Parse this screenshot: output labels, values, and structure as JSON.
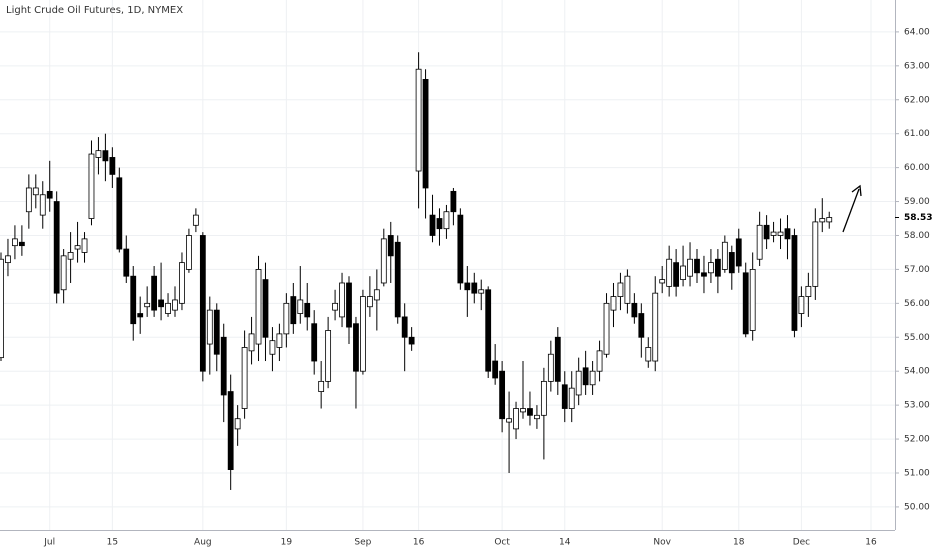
{
  "chart_data": {
    "type": "candlestick",
    "title": "Light Crude Oil Futures, 1D, NYMEX",
    "categories": [
      null,
      null,
      null,
      null,
      null,
      null,
      null,
      "Jul",
      null,
      null,
      null,
      null,
      null,
      null,
      null,
      null,
      "15",
      null,
      null,
      null,
      null,
      null,
      null,
      null,
      null,
      null,
      null,
      null,
      null,
      "Aug",
      null,
      null,
      null,
      null,
      null,
      null,
      null,
      null,
      null,
      null,
      null,
      "19",
      null,
      null,
      null,
      null,
      null,
      null,
      null,
      null,
      null,
      null,
      "Sep",
      null,
      null,
      null,
      null,
      null,
      null,
      null,
      "16",
      null,
      null,
      null,
      null,
      null,
      null,
      null,
      null,
      null,
      null,
      null,
      "Oct",
      null,
      null,
      null,
      null,
      null,
      null,
      null,
      null,
      "14",
      null,
      null,
      null,
      null,
      null,
      null,
      null,
      null,
      null,
      null,
      null,
      null,
      null,
      "Nov",
      null,
      null,
      null,
      null,
      null,
      null,
      null,
      null,
      null,
      null,
      "18",
      null,
      null,
      null,
      null,
      null,
      null,
      null,
      null,
      "Dec",
      null,
      null,
      null,
      null,
      null,
      null,
      null,
      null,
      null,
      "16"
    ],
    "open": [
      54.4,
      57.2,
      57.7,
      57.8,
      58.7,
      59.2,
      58.6,
      59.3,
      59.0,
      56.4,
      57.3,
      57.6,
      57.5,
      58.5,
      60.3,
      60.5,
      60.3,
      59.7,
      57.6,
      56.8,
      55.7,
      55.9,
      56.8,
      56.1,
      55.7,
      55.8,
      56.0,
      57.0,
      58.3,
      58.0,
      54.8,
      55.8,
      55.0,
      53.4,
      52.3,
      52.9,
      54.6,
      54.8,
      56.7,
      54.5,
      54.7,
      55.1,
      56.2,
      55.7,
      56.0,
      55.4,
      53.4,
      53.7,
      55.8,
      55.6,
      56.6,
      55.4,
      54.0,
      55.9,
      56.1,
      56.6,
      58.0,
      57.8,
      55.6,
      55.0,
      59.9,
      62.6,
      58.6,
      58.5,
      58.2,
      59.3,
      58.6,
      56.6,
      56.6,
      56.3,
      56.4,
      54.3,
      54.0,
      52.5,
      52.3,
      52.8,
      52.9,
      52.6,
      52.7,
      53.7,
      55.0,
      53.6,
      52.9,
      53.3,
      54.1,
      53.6,
      54.0,
      54.5,
      55.8,
      56.2,
      56.0,
      56.0,
      55.7,
      54.3,
      54.3,
      56.6,
      56.5,
      57.2,
      56.7,
      56.8,
      57.3,
      56.9,
      56.9,
      57.3,
      57.0,
      57.5,
      57.9,
      56.9,
      55.2,
      57.3,
      58.3,
      58.0,
      58.0,
      58.2,
      58.0,
      55.7,
      56.2,
      56.5,
      58.4,
      58.4,
      null,
      null,
      null,
      null,
      null,
      null
    ],
    "high": [
      57.5,
      57.9,
      58.3,
      58.3,
      59.8,
      59.8,
      59.6,
      60.2,
      59.3,
      57.6,
      58.1,
      58.4,
      58.1,
      60.8,
      60.9,
      61.0,
      60.6,
      60.0,
      58.0,
      57.1,
      56.2,
      56.5,
      57.1,
      57.2,
      56.3,
      56.5,
      57.5,
      58.2,
      58.8,
      58.1,
      56.2,
      56.0,
      55.4,
      53.9,
      53.0,
      55.2,
      55.6,
      57.4,
      57.2,
      55.3,
      55.4,
      56.3,
      56.6,
      57.1,
      56.6,
      55.8,
      54.3,
      55.6,
      56.4,
      56.9,
      56.8,
      55.6,
      56.4,
      56.8,
      57.0,
      58.2,
      58.4,
      58.0,
      56.0,
      55.3,
      63.4,
      62.9,
      59.2,
      58.8,
      58.9,
      59.4,
      58.8,
      57.1,
      56.9,
      56.7,
      56.5,
      54.8,
      54.3,
      53.4,
      53.1,
      54.3,
      53.4,
      53.0,
      54.1,
      54.9,
      55.3,
      54.0,
      54.0,
      54.4,
      54.6,
      54.3,
      54.9,
      56.3,
      56.6,
      56.9,
      57.0,
      56.3,
      56.0,
      55.0,
      56.8,
      57.1,
      57.7,
      57.6,
      57.7,
      57.8,
      57.6,
      57.4,
      57.6,
      57.6,
      58.0,
      57.7,
      58.2,
      57.2,
      57.5,
      58.7,
      58.6,
      58.4,
      58.5,
      58.6,
      58.2,
      56.5,
      56.9,
      58.8,
      59.1,
      58.7,
      null,
      null,
      null,
      null,
      null,
      null
    ],
    "low": [
      54.3,
      56.8,
      57.3,
      57.4,
      58.2,
      58.8,
      58.2,
      58.7,
      56.0,
      56.0,
      56.6,
      57.2,
      57.2,
      58.3,
      59.8,
      59.6,
      59.4,
      57.5,
      56.6,
      54.9,
      55.1,
      55.6,
      55.6,
      55.5,
      55.6,
      55.6,
      55.8,
      56.9,
      58.1,
      53.7,
      53.9,
      54.0,
      52.5,
      50.5,
      51.8,
      52.6,
      54.2,
      54.3,
      54.3,
      54.0,
      54.3,
      54.7,
      55.1,
      55.4,
      55.2,
      53.9,
      52.9,
      53.5,
      55.5,
      55.3,
      54.8,
      52.9,
      53.9,
      55.6,
      55.2,
      56.5,
      56.6,
      55.4,
      54.0,
      54.6,
      58.8,
      58.5,
      57.8,
      57.7,
      57.9,
      58.3,
      56.4,
      55.6,
      56.0,
      55.8,
      53.8,
      53.6,
      52.2,
      51.0,
      52.0,
      52.6,
      52.4,
      52.3,
      51.4,
      53.4,
      53.3,
      52.5,
      52.5,
      53.0,
      53.3,
      53.3,
      53.7,
      54.4,
      55.3,
      55.8,
      55.7,
      55.4,
      54.4,
      54.1,
      54.0,
      56.3,
      56.2,
      56.2,
      56.5,
      56.5,
      56.6,
      56.3,
      56.6,
      56.3,
      56.9,
      56.4,
      56.9,
      55.0,
      54.9,
      57.1,
      57.6,
      57.8,
      57.6,
      57.3,
      55.0,
      55.3,
      55.6,
      56.1,
      58.1,
      58.2,
      null,
      null,
      null,
      null,
      null,
      null
    ],
    "close": [
      57.3,
      57.4,
      57.9,
      57.7,
      59.4,
      59.4,
      59.2,
      59.1,
      56.3,
      57.4,
      57.5,
      57.7,
      57.9,
      60.4,
      60.5,
      60.2,
      59.8,
      57.6,
      56.8,
      55.4,
      55.6,
      56.0,
      55.8,
      55.9,
      56.0,
      56.1,
      57.2,
      58.0,
      58.6,
      54.0,
      55.8,
      54.5,
      53.3,
      51.1,
      52.6,
      54.7,
      55.1,
      57.0,
      55.0,
      54.9,
      55.1,
      56.0,
      55.4,
      56.1,
      55.6,
      54.3,
      53.7,
      55.2,
      56.0,
      56.6,
      55.3,
      54.0,
      56.2,
      56.2,
      56.4,
      57.9,
      57.4,
      55.6,
      55.0,
      54.8,
      62.9,
      59.4,
      58.0,
      58.2,
      58.7,
      58.7,
      56.6,
      56.4,
      56.3,
      56.4,
      54.0,
      53.8,
      52.6,
      52.6,
      52.9,
      52.9,
      52.7,
      52.7,
      53.7,
      54.5,
      53.7,
      52.9,
      53.5,
      54.0,
      53.6,
      54.0,
      54.6,
      56.0,
      56.2,
      56.6,
      56.8,
      55.6,
      55.0,
      54.7,
      56.3,
      56.7,
      57.3,
      56.5,
      57.1,
      57.3,
      56.9,
      56.8,
      57.2,
      56.8,
      57.8,
      56.9,
      57.1,
      55.1,
      57.0,
      58.3,
      57.9,
      58.1,
      58.1,
      57.9,
      55.2,
      56.2,
      56.5,
      58.4,
      58.5,
      58.53,
      null,
      null,
      null,
      null,
      null,
      null
    ],
    "last_price": 58.53,
    "up_color": "#ffffff",
    "down_color": "#000000",
    "ylim": [
      49.32,
      64.94
    ],
    "yticks": [
      {
        "value": 50,
        "label": "50.00"
      },
      {
        "value": 51,
        "label": "51.00"
      },
      {
        "value": 52,
        "label": "52.00"
      },
      {
        "value": 53,
        "label": "53.00"
      },
      {
        "value": 54,
        "label": "54.00"
      },
      {
        "value": 55,
        "label": "55.00"
      },
      {
        "value": 56,
        "label": "56.00"
      },
      {
        "value": 57,
        "label": "57.00"
      },
      {
        "value": 58,
        "label": "58.00"
      },
      {
        "value": 59,
        "label": "59.00"
      },
      {
        "value": 60,
        "label": "60.00"
      },
      {
        "value": 61,
        "label": "61.00"
      },
      {
        "value": 62,
        "label": "62.00"
      },
      {
        "value": 63,
        "label": "63.00"
      },
      {
        "value": 64,
        "label": "64.00"
      }
    ],
    "grid": true
  }
}
